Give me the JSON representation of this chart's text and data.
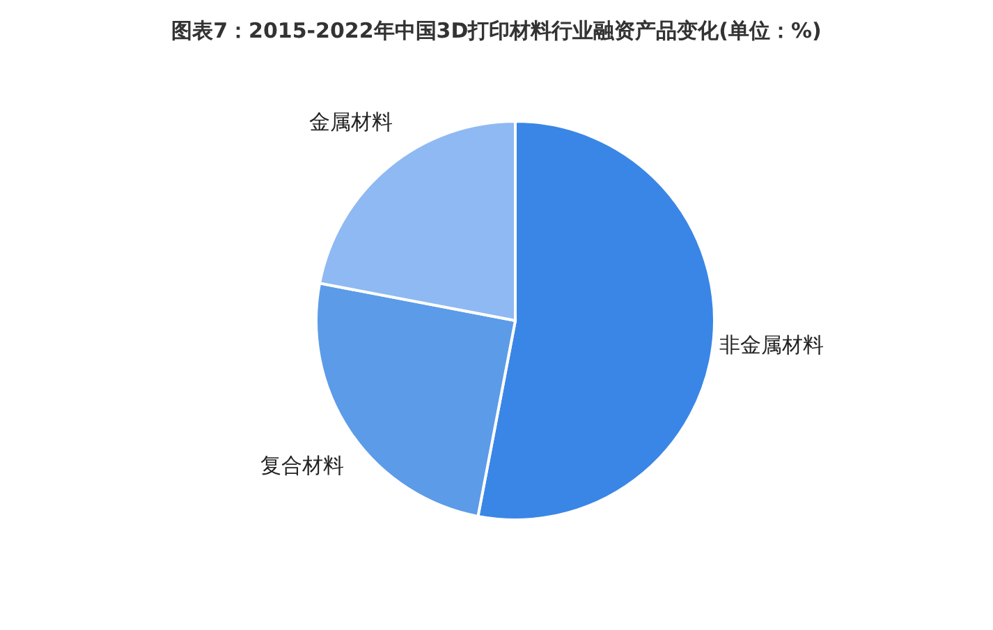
{
  "chart_data": {
    "type": "pie",
    "title": "图表7：2015-2022年中国3D打印材料行业融资产品变化(单位：%)",
    "categories": [
      "非金属材料",
      "复合材料",
      "金属材料"
    ],
    "values": [
      53,
      25,
      22
    ],
    "colors": [
      "#3a86e6",
      "#5c9be8",
      "#8fb9f2"
    ]
  }
}
